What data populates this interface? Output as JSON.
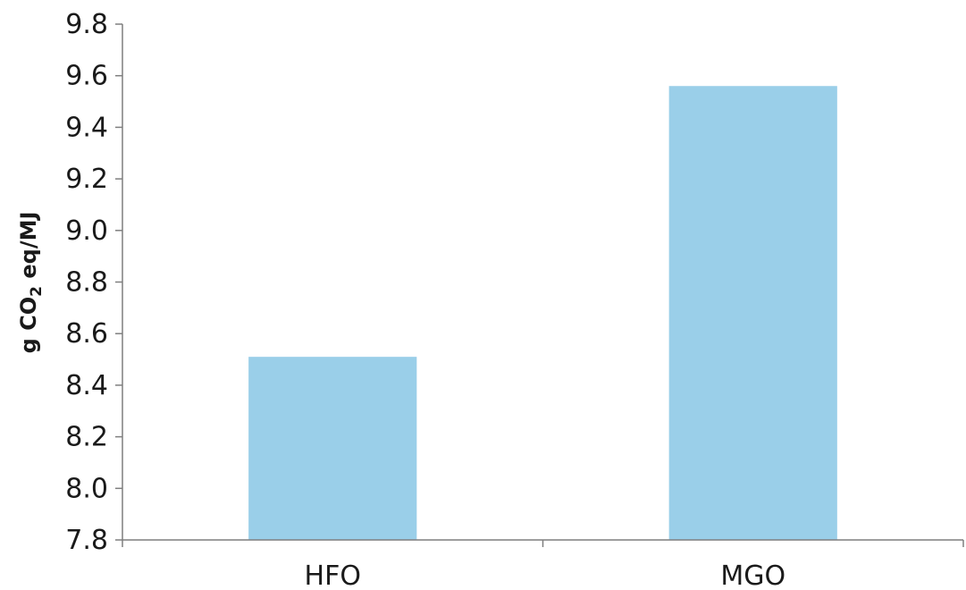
{
  "chart_data": {
    "type": "bar",
    "categories": [
      "HFO",
      "MGO"
    ],
    "values": [
      8.51,
      9.56
    ],
    "title": "",
    "xlabel": "",
    "ylabel": {
      "prefix": "g CO",
      "subscript": "2",
      "suffix": " eq/MJ"
    },
    "ylim": [
      7.8,
      9.8
    ],
    "yticks": [
      "7.8",
      "8.0",
      "8.2",
      "8.4",
      "8.6",
      "8.8",
      "9.0",
      "9.2",
      "9.4",
      "9.6",
      "9.8"
    ],
    "grid": false,
    "legend": "none",
    "bar_color": "#9acfe9"
  }
}
